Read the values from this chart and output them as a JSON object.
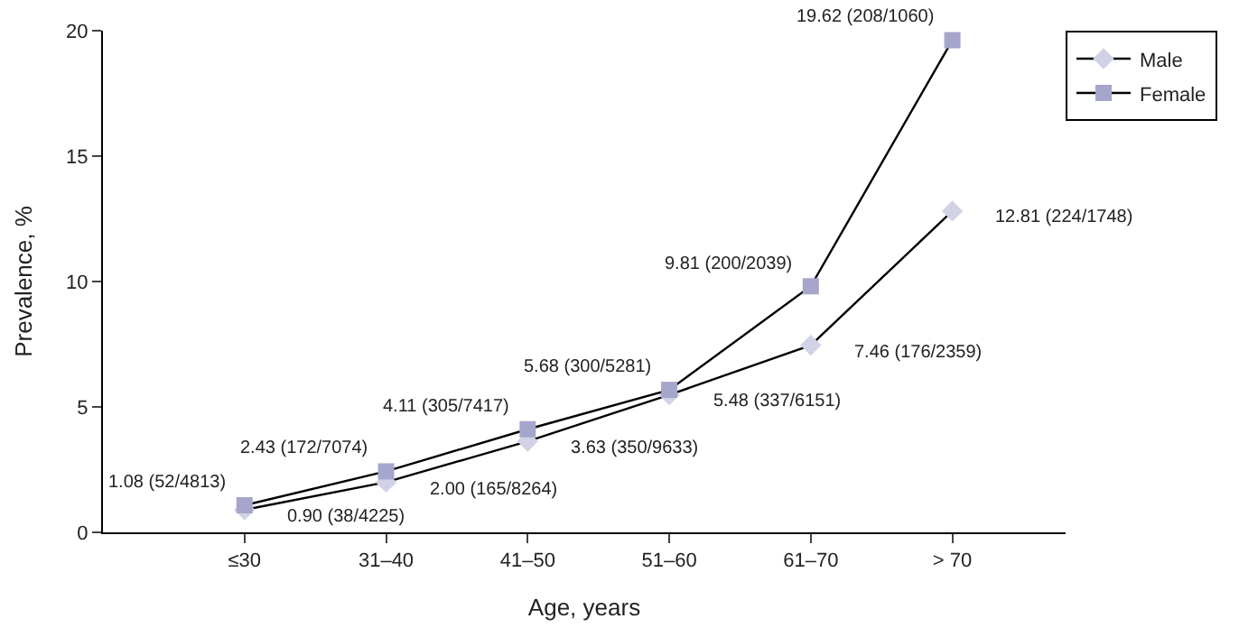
{
  "chart_data": {
    "type": "line",
    "xlabel": "Age, years",
    "ylabel": "Prevalence, %",
    "categories": [
      "≤30",
      "31–40",
      "41–50",
      "51–60",
      "61–70",
      "> 70"
    ],
    "series": [
      {
        "name": "Male",
        "color": "#d2d2e6",
        "marker": "diamond",
        "values": [
          0.9,
          2.0,
          3.63,
          5.48,
          7.46,
          12.81
        ],
        "value_labels": [
          "0.90 (38/4225)",
          "2.00 (165/8264)",
          "3.63 (350/9633)",
          "5.48 (337/6151)",
          "7.46 (176/2359)",
          "12.81 (224/1748)"
        ]
      },
      {
        "name": "Female",
        "color": "#a6a6cc",
        "marker": "square",
        "values": [
          1.08,
          2.43,
          4.11,
          5.68,
          9.81,
          19.62
        ],
        "value_labels": [
          "1.08 (52/4813)",
          "2.43 (172/7074)",
          "4.11 (305/7417)",
          "5.68 (300/5281)",
          "9.81 (200/2039)",
          "19.62 (208/1060)"
        ]
      }
    ],
    "ylim": [
      0,
      20
    ],
    "yticks": [
      0,
      5,
      10,
      15,
      20
    ],
    "legend": "top right"
  }
}
